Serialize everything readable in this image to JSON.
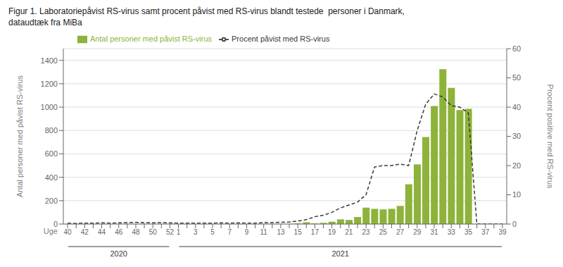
{
  "chart_data": {
    "type": "bar",
    "title": "Figur 1. Laboratoriepåvist RS-virus samt procent påvist med RS-virus blandt testede  personer i Danmark,\ndataudtæk fra MiBa",
    "x_label": "Uge",
    "y_label": "Antal personer med påvist RS-virus",
    "y2_label": "Procent positive med RS-virus",
    "categories": [
      "40",
      null,
      "42",
      null,
      "44",
      null,
      "46",
      null,
      "48",
      null,
      "50",
      null,
      "52",
      "1",
      null,
      "3",
      null,
      "5",
      null,
      "7",
      null,
      "9",
      null,
      "11",
      null,
      "13",
      null,
      "15",
      null,
      "17",
      null,
      "19",
      null,
      "21",
      null,
      "23",
      null,
      "25",
      null,
      "27",
      null,
      "29",
      null,
      "31",
      null,
      "33",
      null,
      "35",
      null,
      "37",
      null,
      "39"
    ],
    "series": [
      {
        "name": "Antal personer med påvist RS-virus",
        "type": "bar",
        "color": "#8db33a",
        "values": [
          0,
          0,
          0,
          0,
          0,
          0,
          0,
          0,
          0,
          0,
          0,
          0,
          0,
          0,
          0,
          0,
          0,
          0,
          0,
          0,
          0,
          0,
          0,
          0,
          0,
          0,
          0,
          5,
          15,
          5,
          10,
          20,
          40,
          35,
          60,
          140,
          130,
          125,
          130,
          155,
          340,
          510,
          745,
          1010,
          1325,
          1165,
          975,
          985,
          0,
          0,
          0,
          0
        ]
      },
      {
        "name": "Procent påvist med RS-virus",
        "type": "line",
        "color": "#3a3a3a",
        "line_style": "dashed",
        "axis": "y2",
        "values": [
          0.3,
          0.2,
          0.3,
          0.3,
          0.4,
          0.3,
          0.4,
          0.5,
          0.6,
          0.5,
          0.4,
          0.5,
          0.4,
          0.3,
          0.3,
          0.3,
          0.3,
          0.3,
          0.4,
          0.3,
          0.4,
          0.3,
          0.3,
          0.5,
          0.5,
          0.6,
          0.7,
          1.0,
          1.5,
          2.5,
          3.0,
          4.0,
          5.5,
          6.5,
          7.5,
          10.0,
          19.5,
          20.0,
          20.0,
          20.5,
          20.0,
          32.0,
          41.0,
          44.5,
          43.5,
          40.5,
          40.0,
          38.0,
          0,
          0,
          0,
          0
        ]
      }
    ],
    "ylim": [
      0,
      1500
    ],
    "yticks": [
      0,
      200,
      400,
      600,
      800,
      1000,
      1200,
      1400
    ],
    "y2lim": [
      0,
      60
    ],
    "y2ticks": [
      0,
      10,
      20,
      30,
      40,
      50,
      60
    ],
    "grid": true,
    "legend": "upper left",
    "annotations": [
      {
        "text": "2020",
        "from": "40",
        "to": "52"
      },
      {
        "text": "2021",
        "from": "1",
        "to": "39"
      }
    ]
  }
}
